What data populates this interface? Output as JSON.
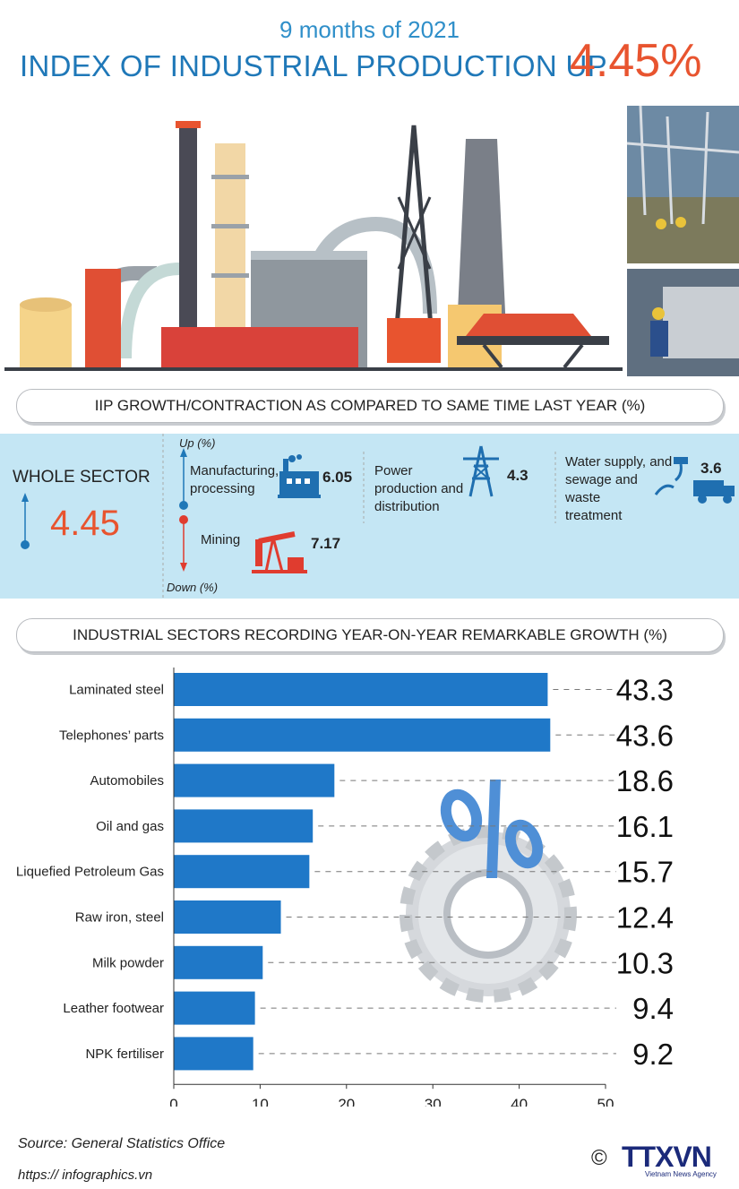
{
  "header": {
    "period": "9 months of 2021",
    "title": "INDEX OF INDUSTRIAL PRODUCTION UP",
    "value": "4.45%"
  },
  "iip": {
    "banner": "IIP GROWTH/CONTRACTION AS COMPARED TO SAME TIME LAST YEAR (%)",
    "whole_sector_label": "WHOLE SECTOR",
    "whole_sector_value": "4.45",
    "up_label": "Up (%)",
    "down_label": "Down (%)",
    "items": [
      {
        "label_lines": [
          "Manufacturing,",
          "processing"
        ],
        "value": "6.05",
        "icon": "factory-icon",
        "direction": "up"
      },
      {
        "label_lines": [
          "Power",
          "production and",
          "distribution"
        ],
        "value": "4.3",
        "icon": "power-tower-icon",
        "direction": "up"
      },
      {
        "label_lines": [
          "Water supply, and",
          "sewage and",
          "waste",
          "treatment"
        ],
        "value": "3.6",
        "icon": "water-truck-icon",
        "direction": "up"
      },
      {
        "label_lines": [
          "Mining"
        ],
        "value": "7.17",
        "icon": "oil-pump-icon",
        "direction": "down"
      }
    ]
  },
  "chart_banner": "INDUSTRIAL SECTORS RECORDING YEAR-ON-YEAR REMARKABLE GROWTH (%)",
  "chart_data": {
    "type": "bar",
    "orientation": "horizontal",
    "categories": [
      "Laminated steel",
      "Telephones’ parts",
      "Automobiles",
      "Oil and gas",
      "Liquefied Petroleum Gas",
      "Raw iron, steel",
      "Milk powder",
      "Leather footwear",
      "NPK fertiliser"
    ],
    "values": [
      43.3,
      43.6,
      18.6,
      16.1,
      15.7,
      12.4,
      10.3,
      9.4,
      9.2
    ],
    "value_labels": [
      "43.3",
      "43.6",
      "18.6",
      "16.1",
      "15.7",
      "12.4",
      "10.3",
      "9.4",
      "9.2"
    ],
    "xlim": [
      0,
      50
    ],
    "xticks": [
      "0",
      "10",
      "20",
      "30",
      "40",
      "50"
    ],
    "bar_color": "#1f78c8",
    "grid": false
  },
  "footer": {
    "source": "Source: General Statistics Office",
    "url": "https:// infographics.vn",
    "copyright_symbol": "©",
    "agency_logo": "TTXVN",
    "agency_name": "Vietnam News Agency"
  },
  "colors": {
    "accent_red": "#e8542f",
    "accent_blue": "#1f78b8",
    "panel_bg": "#c4e6f4"
  }
}
